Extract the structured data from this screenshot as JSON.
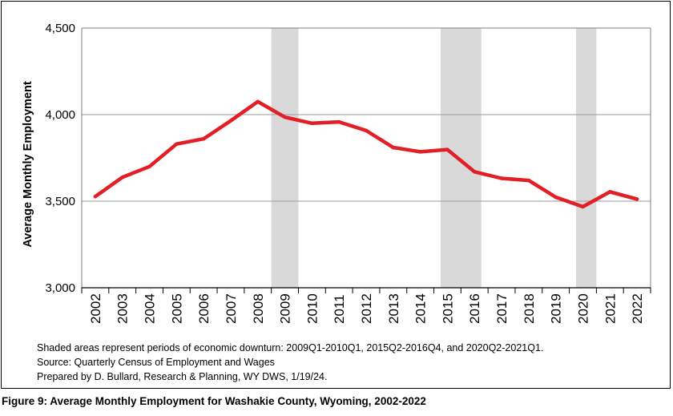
{
  "chart_data": {
    "type": "line",
    "ylabel": "Average Monthly Employment",
    "xlabel": "",
    "categories": [
      "2002",
      "2003",
      "2004",
      "2005",
      "2006",
      "2007",
      "2008",
      "2009",
      "2010",
      "2011",
      "2012",
      "2013",
      "2014",
      "2015",
      "2016",
      "2017",
      "2018",
      "2019",
      "2020",
      "2021",
      "2022"
    ],
    "series": [
      {
        "values": [
          3527,
          3638,
          3700,
          3830,
          3860,
          3965,
          4075,
          3985,
          3950,
          3958,
          3908,
          3810,
          3785,
          3798,
          3670,
          3632,
          3620,
          3523,
          3468,
          3554,
          3512
        ]
      }
    ],
    "ylim": [
      3000,
      4500
    ],
    "yticks": [
      3000,
      3500,
      4000,
      4500
    ],
    "ytick_labels": [
      "3,000",
      "3,500",
      "4,000",
      "4,500"
    ],
    "shaded_periods": [
      {
        "start": 2009.0,
        "end": 2010.0
      },
      {
        "start": 2015.25,
        "end": 2016.75
      },
      {
        "start": 2020.25,
        "end": 2021.0
      }
    ],
    "grid": "horizontal",
    "line_color": "#e21e26",
    "shade_color": "#d9d9d9"
  },
  "notes": {
    "shading": "Shaded areas represent periods of economic downturn: 2009Q1-2010Q1, 2015Q2-2016Q4, and 2020Q2-2021Q1.",
    "source": "Source: Quarterly Census of Employment and Wages",
    "prepared": "Prepared by D. Bullard, Research & Planning, WY DWS, 1/19/24."
  },
  "caption": "Figure 9: Average Monthly Employment for Washakie County, Wyoming, 2002-2022"
}
